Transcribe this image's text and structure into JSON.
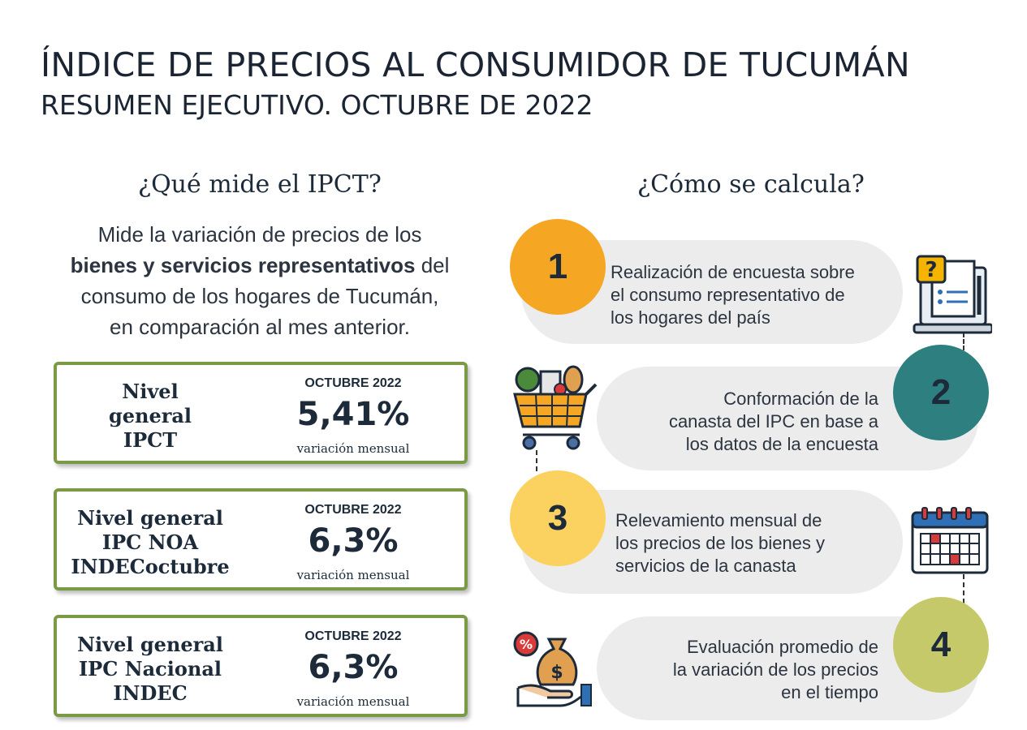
{
  "header": {
    "title": "ÍNDICE DE PRECIOS AL CONSUMIDOR DE TUCUMÁN",
    "subtitle": "RESUMEN EJECUTIVO. OCTUBRE DE 2022"
  },
  "left": {
    "heading": "¿Qué mide el IPCT?",
    "description": {
      "line1": "Mide la variación de precios de los",
      "bold": "bienes y servicios representativos",
      "after_bold": " del",
      "line3": "consumo de los hogares de Tucumán,",
      "line4": "en comparación al mes anterior."
    },
    "cards": [
      {
        "label": [
          "Nivel",
          "general",
          "IPCT"
        ],
        "month": "OCTUBRE 2022",
        "value": "5,41%",
        "unit": "variación mensual"
      },
      {
        "label": [
          "Nivel general",
          "IPC NOA",
          "INDECoctubre"
        ],
        "month": "OCTUBRE 2022",
        "value": "6,3%",
        "unit": "variación mensual"
      },
      {
        "label": [
          "Nivel general",
          "IPC Nacional",
          "INDEC"
        ],
        "month": "OCTUBRE 2022",
        "value": "6,3%",
        "unit": "variación mensual"
      }
    ]
  },
  "right": {
    "heading": "¿Cómo se calcula?",
    "steps": [
      {
        "number": "1",
        "lines": [
          "Realización de encuesta sobre",
          "el consumo representativo de",
          "los hogares del país"
        ],
        "color": "#f5a623"
      },
      {
        "number": "2",
        "lines": [
          "Conformación de la",
          "canasta del IPC en base a",
          "los datos de la encuesta"
        ],
        "color": "#2e8080"
      },
      {
        "number": "3",
        "lines": [
          "Relevamiento mensual de",
          "los precios de los bienes y",
          "servicios de la canasta"
        ],
        "color": "#fbd160"
      },
      {
        "number": "4",
        "lines": [
          "Evaluación promedio de",
          "la variación de los precios",
          "en el tiempo"
        ],
        "color": "#c5c96a"
      }
    ],
    "icons": [
      "survey-laptop-icon",
      "shopping-cart-icon",
      "calendar-icon",
      "money-bag-hand-icon"
    ]
  },
  "colors": {
    "card_border": "#7a9a45",
    "pill_bg": "#ececec",
    "text": "#1c2a3a"
  }
}
